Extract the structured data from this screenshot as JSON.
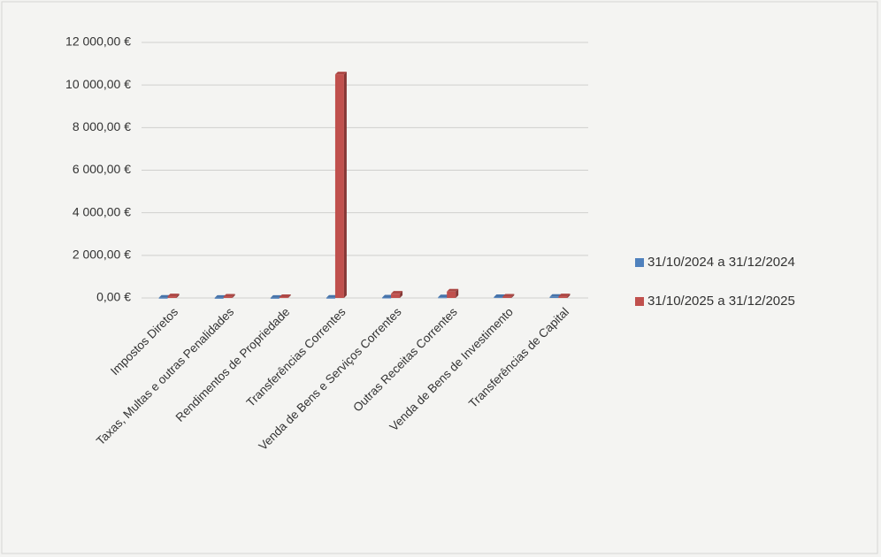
{
  "chart_data": {
    "type": "bar",
    "categories": [
      "Impostos Diretos",
      "Taxas, Multas e outras Penalidades",
      "Rendimentos de Propriedade",
      "Transferências Correntes",
      "Venda de Bens e Serviços Correntes",
      "Outras Receitas Correntes",
      "Venda de Bens de Investimento",
      "Transferências de Capital"
    ],
    "series": [
      {
        "name": "31/10/2024 a 31/12/2024",
        "color": "#4f81bd",
        "values": [
          10,
          5,
          5,
          10,
          20,
          30,
          40,
          50
        ]
      },
      {
        "name": "31/10/2025 a 31/12/2025",
        "color": "#c0504d",
        "values": [
          80,
          60,
          40,
          10500,
          200,
          300,
          60,
          80
        ]
      }
    ],
    "ylim": [
      0,
      12000
    ],
    "yticks": [
      {
        "value": 0,
        "label": "0,00 €"
      },
      {
        "value": 2000,
        "label": "2 000,00 €"
      },
      {
        "value": 4000,
        "label": "4 000,00 €"
      },
      {
        "value": 6000,
        "label": "6 000,00 €"
      },
      {
        "value": 8000,
        "label": "8 000,00 €"
      },
      {
        "value": 10000,
        "label": "10 000,00 €"
      },
      {
        "value": 12000,
        "label": "12 000,00 €"
      }
    ],
    "grid": true,
    "legend": "right"
  }
}
